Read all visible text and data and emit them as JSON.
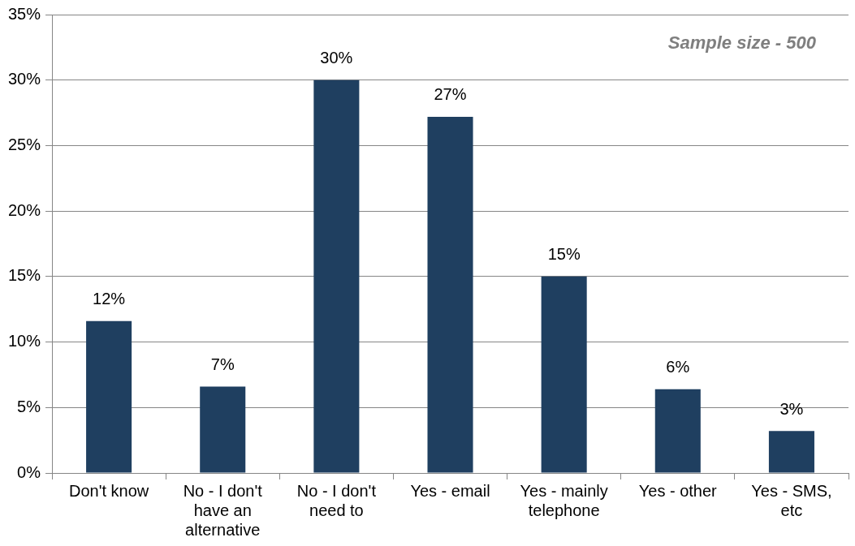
{
  "chart_data": {
    "type": "bar",
    "categories": [
      "Don't know",
      "No - I don't have an alternative",
      "No - I don't need to",
      "Yes - email",
      "Yes - mainly telephone",
      "Yes - other",
      "Yes - SMS, etc"
    ],
    "values": [
      11.6,
      6.6,
      30,
      27.2,
      15,
      6.4,
      3.2
    ],
    "value_labels": [
      "12%",
      "7%",
      "30%",
      "27%",
      "15%",
      "6%",
      "3%"
    ],
    "color": "#1f3f60",
    "ylim": [
      0,
      35
    ],
    "yticks": [
      {
        "value": 0,
        "label": "0%"
      },
      {
        "value": 5,
        "label": "5%"
      },
      {
        "value": 10,
        "label": "10%"
      },
      {
        "value": 15,
        "label": "15%"
      },
      {
        "value": 20,
        "label": "20%"
      },
      {
        "value": 25,
        "label": "25%"
      },
      {
        "value": 30,
        "label": "30%"
      },
      {
        "value": 35,
        "label": "35%"
      }
    ],
    "grid": "y",
    "legend": false,
    "annotations": [
      "Sample size - 500"
    ]
  }
}
